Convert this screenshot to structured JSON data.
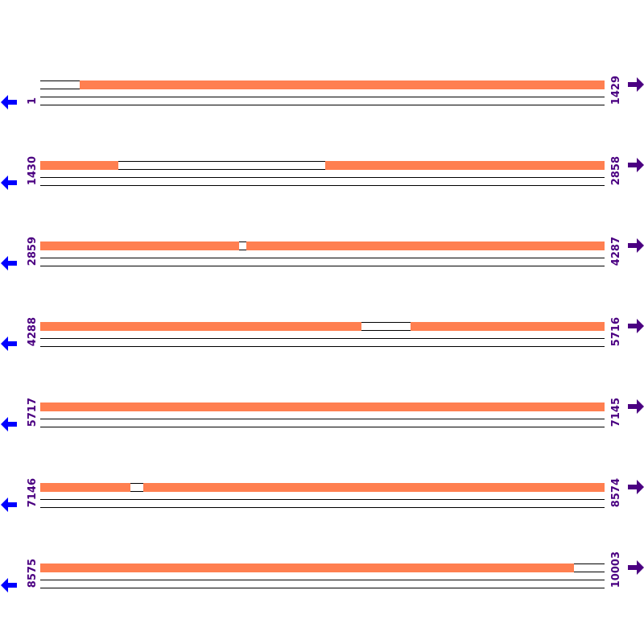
{
  "colors": {
    "covered": "#ff7f50",
    "label": "#4b0082",
    "left_arrow": "#0000ff",
    "right_arrow": "#4b0082"
  },
  "icons": {
    "left": "arrow-left-icon",
    "right": "arrow-right-icon"
  },
  "rows": [
    {
      "start": "1",
      "end": "1429",
      "covered": [
        [
          101,
          1429
        ]
      ]
    },
    {
      "start": "1430",
      "end": "2858",
      "covered": [
        [
          1430,
          1627
        ],
        [
          2152,
          2858
        ]
      ]
    },
    {
      "start": "2859",
      "end": "4287",
      "covered": [
        [
          2859,
          3362
        ],
        [
          3381,
          4287
        ]
      ]
    },
    {
      "start": "4288",
      "end": "5716",
      "covered": [
        [
          4288,
          5101
        ],
        [
          5226,
          5716
        ]
      ]
    },
    {
      "start": "5717",
      "end": "7145",
      "covered": [
        [
          5717,
          7145
        ]
      ]
    },
    {
      "start": "7146",
      "end": "8574",
      "covered": [
        [
          7146,
          7374
        ],
        [
          7407,
          8574
        ]
      ]
    },
    {
      "start": "8575",
      "end": "10003",
      "covered": [
        [
          8575,
          9925
        ]
      ]
    }
  ]
}
